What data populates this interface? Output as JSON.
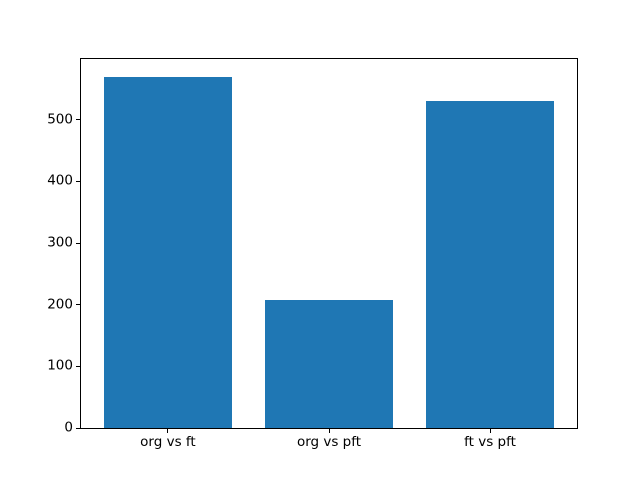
{
  "chart_data": {
    "type": "bar",
    "categories": [
      "org vs ft",
      "org vs pft",
      "ft vs pft"
    ],
    "values": [
      570,
      207,
      530
    ],
    "title": "",
    "xlabel": "",
    "ylabel": "",
    "ylim": [
      0,
      598.5
    ],
    "yticks": [
      0,
      100,
      200,
      300,
      400,
      500
    ],
    "xlim": [
      -0.54,
      2.54
    ],
    "bar_centers": [
      0,
      1,
      2
    ],
    "bar_width": 0.8,
    "bar_color": "#1f77b4",
    "background_color": "#ffffff",
    "spine_color": "#000000",
    "tick_color": "#000000",
    "grid": false,
    "legend": "none"
  }
}
